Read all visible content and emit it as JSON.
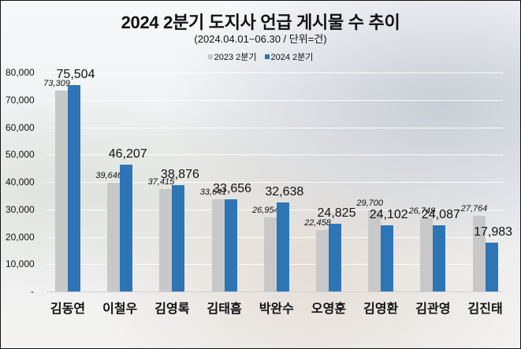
{
  "header": {
    "title": "2024 2분기 도지사 언급 게시물 수 추이",
    "subtitle": "(2024.04.01~06.30 / 단위=건)"
  },
  "legend": [
    {
      "label": "2023 2분기",
      "color": "#c8c8c8"
    },
    {
      "label": "2024 2분기",
      "color": "#2e75b6"
    }
  ],
  "yaxis": {
    "ticks": [
      "80,000",
      "70,000",
      "60,000",
      "50,000",
      "40,000",
      "30,000",
      "20,000",
      "10,000",
      "-"
    ]
  },
  "chart_data": {
    "type": "bar",
    "title": "2024 2분기 도지사 언급 게시물 수 추이",
    "subtitle": "(2024.04.01~06.30 / 단위=건)",
    "xlabel": "",
    "ylabel": "",
    "ylim": [
      0,
      80000
    ],
    "yticks": [
      0,
      10000,
      20000,
      30000,
      40000,
      50000,
      60000,
      70000,
      80000
    ],
    "grid": true,
    "legend_position": "top",
    "categories": [
      "김동연",
      "이철우",
      "김영록",
      "김태흠",
      "박완수",
      "오영훈",
      "김영환",
      "김관영",
      "김진태"
    ],
    "series": [
      {
        "name": "2023 2분기",
        "color": "#c8c8c8",
        "values": [
          73309,
          39646,
          37415,
          33641,
          26954,
          22458,
          29700,
          26749,
          27764
        ],
        "labels": [
          "73,309",
          "39,646",
          "37,415",
          "33,641",
          "26,954",
          "22,458",
          "29,700",
          "26,749",
          "27,764"
        ]
      },
      {
        "name": "2024 2분기",
        "color": "#2e75b6",
        "values": [
          75504,
          46207,
          38876,
          33656,
          32638,
          24825,
          24102,
          24087,
          17983
        ],
        "labels": [
          "75,504",
          "46,207",
          "38,876",
          "33,656",
          "32,638",
          "24,825",
          "24,102",
          "24,087",
          "17,983"
        ]
      }
    ]
  }
}
